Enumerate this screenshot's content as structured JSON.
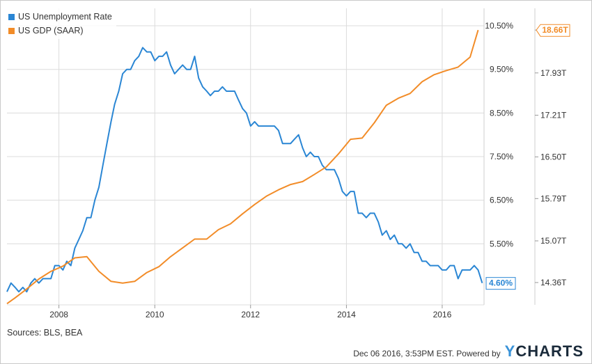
{
  "chart_data": {
    "type": "line",
    "x_ticks": [
      "2008",
      "2010",
      "2012",
      "2014",
      "2016"
    ],
    "y_left_ticks": [
      "10.50%",
      "9.50%",
      "8.50%",
      "7.50%",
      "6.50%",
      "5.50%"
    ],
    "y_right_ticks": [
      "18.66T",
      "17.93T",
      "17.21T",
      "16.50T",
      "15.79T",
      "15.07T",
      "14.36T"
    ],
    "y_left_range": [
      4.1,
      10.9
    ],
    "y_right_range": [
      13.98,
      19.03
    ],
    "series": [
      {
        "name": "US Unemployment Rate",
        "color": "#2a86d4",
        "axis": "left",
        "end_label": "4.60%",
        "points": [
          [
            "2006-12",
            4.4
          ],
          [
            "2007-01",
            4.6
          ],
          [
            "2007-02",
            4.5
          ],
          [
            "2007-03",
            4.4
          ],
          [
            "2007-04",
            4.5
          ],
          [
            "2007-05",
            4.4
          ],
          [
            "2007-06",
            4.6
          ],
          [
            "2007-07",
            4.7
          ],
          [
            "2007-08",
            4.6
          ],
          [
            "2007-09",
            4.7
          ],
          [
            "2007-10",
            4.7
          ],
          [
            "2007-11",
            4.7
          ],
          [
            "2007-12",
            5.0
          ],
          [
            "2008-01",
            5.0
          ],
          [
            "2008-02",
            4.9
          ],
          [
            "2008-03",
            5.1
          ],
          [
            "2008-04",
            5.0
          ],
          [
            "2008-05",
            5.4
          ],
          [
            "2008-06",
            5.6
          ],
          [
            "2008-07",
            5.8
          ],
          [
            "2008-08",
            6.1
          ],
          [
            "2008-09",
            6.1
          ],
          [
            "2008-10",
            6.5
          ],
          [
            "2008-11",
            6.8
          ],
          [
            "2008-12",
            7.3
          ],
          [
            "2009-01",
            7.8
          ],
          [
            "2009-02",
            8.3
          ],
          [
            "2009-03",
            8.7
          ],
          [
            "2009-04",
            9.0
          ],
          [
            "2009-05",
            9.4
          ],
          [
            "2009-06",
            9.5
          ],
          [
            "2009-07",
            9.5
          ],
          [
            "2009-08",
            9.7
          ],
          [
            "2009-09",
            9.8
          ],
          [
            "2009-10",
            10.0
          ],
          [
            "2009-11",
            9.9
          ],
          [
            "2009-12",
            9.9
          ],
          [
            "2010-01",
            9.7
          ],
          [
            "2010-02",
            9.8
          ],
          [
            "2010-03",
            9.8
          ],
          [
            "2010-04",
            9.9
          ],
          [
            "2010-05",
            9.6
          ],
          [
            "2010-06",
            9.4
          ],
          [
            "2010-07",
            9.5
          ],
          [
            "2010-08",
            9.6
          ],
          [
            "2010-09",
            9.5
          ],
          [
            "2010-10",
            9.5
          ],
          [
            "2010-11",
            9.8
          ],
          [
            "2010-12",
            9.3
          ],
          [
            "2011-01",
            9.1
          ],
          [
            "2011-02",
            9.0
          ],
          [
            "2011-03",
            8.9
          ],
          [
            "2011-04",
            9.0
          ],
          [
            "2011-05",
            9.0
          ],
          [
            "2011-06",
            9.1
          ],
          [
            "2011-07",
            9.0
          ],
          [
            "2011-08",
            9.0
          ],
          [
            "2011-09",
            9.0
          ],
          [
            "2011-10",
            8.8
          ],
          [
            "2011-11",
            8.6
          ],
          [
            "2011-12",
            8.5
          ],
          [
            "2012-01",
            8.2
          ],
          [
            "2012-02",
            8.3
          ],
          [
            "2012-03",
            8.2
          ],
          [
            "2012-04",
            8.2
          ],
          [
            "2012-05",
            8.2
          ],
          [
            "2012-06",
            8.2
          ],
          [
            "2012-07",
            8.2
          ],
          [
            "2012-08",
            8.1
          ],
          [
            "2012-09",
            7.8
          ],
          [
            "2012-10",
            7.8
          ],
          [
            "2012-11",
            7.8
          ],
          [
            "2012-12",
            7.9
          ],
          [
            "2013-01",
            8.0
          ],
          [
            "2013-02",
            7.7
          ],
          [
            "2013-03",
            7.5
          ],
          [
            "2013-04",
            7.6
          ],
          [
            "2013-05",
            7.5
          ],
          [
            "2013-06",
            7.5
          ],
          [
            "2013-07",
            7.3
          ],
          [
            "2013-08",
            7.2
          ],
          [
            "2013-09",
            7.2
          ],
          [
            "2013-10",
            7.2
          ],
          [
            "2013-11",
            7.0
          ],
          [
            "2013-12",
            6.7
          ],
          [
            "2014-01",
            6.6
          ],
          [
            "2014-02",
            6.7
          ],
          [
            "2014-03",
            6.7
          ],
          [
            "2014-04",
            6.2
          ],
          [
            "2014-05",
            6.2
          ],
          [
            "2014-06",
            6.1
          ],
          [
            "2014-07",
            6.2
          ],
          [
            "2014-08",
            6.2
          ],
          [
            "2014-09",
            6.0
          ],
          [
            "2014-10",
            5.7
          ],
          [
            "2014-11",
            5.8
          ],
          [
            "2014-12",
            5.6
          ],
          [
            "2015-01",
            5.7
          ],
          [
            "2015-02",
            5.5
          ],
          [
            "2015-03",
            5.5
          ],
          [
            "2015-04",
            5.4
          ],
          [
            "2015-05",
            5.5
          ],
          [
            "2015-06",
            5.3
          ],
          [
            "2015-07",
            5.3
          ],
          [
            "2015-08",
            5.1
          ],
          [
            "2015-09",
            5.1
          ],
          [
            "2015-10",
            5.0
          ],
          [
            "2015-11",
            5.0
          ],
          [
            "2015-12",
            5.0
          ],
          [
            "2016-01",
            4.9
          ],
          [
            "2016-02",
            4.9
          ],
          [
            "2016-03",
            5.0
          ],
          [
            "2016-04",
            5.0
          ],
          [
            "2016-05",
            4.7
          ],
          [
            "2016-06",
            4.9
          ],
          [
            "2016-07",
            4.9
          ],
          [
            "2016-08",
            4.9
          ],
          [
            "2016-09",
            5.0
          ],
          [
            "2016-10",
            4.9
          ],
          [
            "2016-11",
            4.6
          ]
        ]
      },
      {
        "name": "US GDP (SAAR)",
        "color": "#f28c28",
        "axis": "right",
        "end_label": "18.66T",
        "points": [
          [
            "2006-12",
            14.0
          ],
          [
            "2007-02",
            14.1
          ],
          [
            "2007-05",
            14.25
          ],
          [
            "2007-08",
            14.42
          ],
          [
            "2007-11",
            14.55
          ],
          [
            "2008-02",
            14.64
          ],
          [
            "2008-05",
            14.78
          ],
          [
            "2008-08",
            14.8
          ],
          [
            "2008-11",
            14.55
          ],
          [
            "2009-02",
            14.38
          ],
          [
            "2009-05",
            14.35
          ],
          [
            "2009-08",
            14.38
          ],
          [
            "2009-11",
            14.53
          ],
          [
            "2010-02",
            14.63
          ],
          [
            "2010-05",
            14.8
          ],
          [
            "2010-08",
            14.95
          ],
          [
            "2010-11",
            15.1
          ],
          [
            "2011-02",
            15.1
          ],
          [
            "2011-05",
            15.26
          ],
          [
            "2011-08",
            15.36
          ],
          [
            "2011-11",
            15.53
          ],
          [
            "2012-02",
            15.69
          ],
          [
            "2012-05",
            15.83
          ],
          [
            "2012-08",
            15.94
          ],
          [
            "2012-11",
            16.03
          ],
          [
            "2013-02",
            16.08
          ],
          [
            "2013-05",
            16.2
          ],
          [
            "2013-08",
            16.33
          ],
          [
            "2013-11",
            16.55
          ],
          [
            "2014-02",
            16.8
          ],
          [
            "2014-05",
            16.82
          ],
          [
            "2014-08",
            17.08
          ],
          [
            "2014-11",
            17.38
          ],
          [
            "2015-02",
            17.5
          ],
          [
            "2015-05",
            17.58
          ],
          [
            "2015-08",
            17.78
          ],
          [
            "2015-11",
            17.9
          ],
          [
            "2016-02",
            17.97
          ],
          [
            "2016-05",
            18.03
          ],
          [
            "2016-08",
            18.2
          ],
          [
            "2016-10",
            18.66
          ]
        ]
      }
    ]
  },
  "legend": {
    "items": [
      {
        "label": "US Unemployment Rate",
        "color": "#2a86d4"
      },
      {
        "label": "US GDP (SAAR)",
        "color": "#f28c28"
      }
    ]
  },
  "footer": {
    "sources": "Sources: BLS, BEA",
    "timestamp": "Dec 06 2016, 3:53PM EST.  Powered by",
    "brand_y": "Y",
    "brand_rest": "CHARTS"
  }
}
